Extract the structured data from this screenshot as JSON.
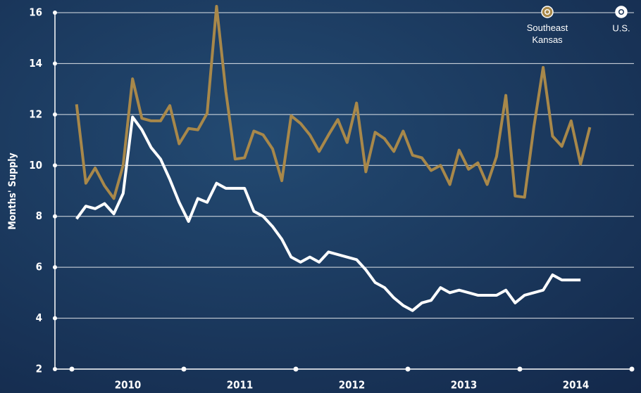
{
  "chart_data": {
    "type": "line",
    "y_label": "Months' Supply",
    "x": [
      2010.042,
      2010.125,
      2010.208,
      2010.292,
      2010.375,
      2010.458,
      2010.542,
      2010.625,
      2010.708,
      2010.792,
      2010.875,
      2010.958,
      2011.042,
      2011.125,
      2011.208,
      2011.292,
      2011.375,
      2011.458,
      2011.542,
      2011.625,
      2011.708,
      2011.792,
      2011.875,
      2011.958,
      2012.042,
      2012.125,
      2012.208,
      2012.292,
      2012.375,
      2012.458,
      2012.542,
      2012.625,
      2012.708,
      2012.792,
      2012.875,
      2012.958,
      2013.042,
      2013.125,
      2013.208,
      2013.292,
      2013.375,
      2013.458,
      2013.542,
      2013.625,
      2013.708,
      2013.792,
      2013.875,
      2013.958,
      2014.042,
      2014.125,
      2014.208,
      2014.292,
      2014.375,
      2014.458,
      2014.542,
      2014.625
    ],
    "series": [
      {
        "name": "Southeast Kansas",
        "color": "#a8884a",
        "values": [
          12.4,
          9.3,
          9.9,
          9.2,
          8.7,
          10.0,
          13.4,
          11.85,
          11.75,
          11.75,
          12.35,
          10.85,
          11.45,
          11.4,
          12.05,
          16.25,
          12.9,
          10.25,
          10.3,
          11.35,
          11.2,
          10.65,
          9.4,
          11.95,
          11.65,
          11.2,
          10.55,
          11.2,
          11.8,
          10.9,
          12.45,
          9.75,
          11.3,
          11.05,
          10.55,
          11.35,
          10.4,
          10.3,
          9.8,
          10.0,
          9.25,
          10.6,
          9.85,
          10.1,
          9.25,
          10.35,
          12.75,
          8.8,
          8.75,
          11.5,
          13.85,
          11.15,
          10.75,
          11.75,
          10.05,
          11.5
        ]
      },
      {
        "name": "U.S.",
        "color": "#ffffff",
        "values": [
          7.9,
          8.4,
          8.3,
          8.5,
          8.1,
          8.9,
          11.9,
          11.4,
          10.7,
          10.25,
          9.45,
          8.55,
          7.8,
          8.7,
          8.55,
          9.3,
          9.1,
          9.1,
          9.1,
          8.2,
          8.0,
          7.6,
          7.1,
          6.4,
          6.2,
          6.4,
          6.2,
          6.6,
          6.5,
          6.4,
          6.3,
          5.9,
          5.4,
          5.2,
          4.8,
          4.5,
          4.3,
          4.6,
          4.7,
          5.2,
          5.0,
          5.1,
          5.0,
          4.9,
          4.9,
          4.9,
          5.1,
          4.6,
          4.9,
          5.0,
          5.1,
          5.7,
          5.5,
          5.5,
          5.5,
          null
        ]
      }
    ],
    "xlim": [
      2010,
      2015
    ],
    "xticks": [
      {
        "value": 2010.5,
        "label": "2010"
      },
      {
        "value": 2011.5,
        "label": "2011"
      },
      {
        "value": 2012.5,
        "label": "2012"
      },
      {
        "value": 2013.5,
        "label": "2013"
      },
      {
        "value": 2014.5,
        "label": "2014"
      }
    ],
    "ylim": [
      2,
      16
    ],
    "yticks": [
      2,
      4,
      6,
      8,
      10,
      12,
      14,
      16
    ],
    "grid": true,
    "legend": "top-right"
  }
}
